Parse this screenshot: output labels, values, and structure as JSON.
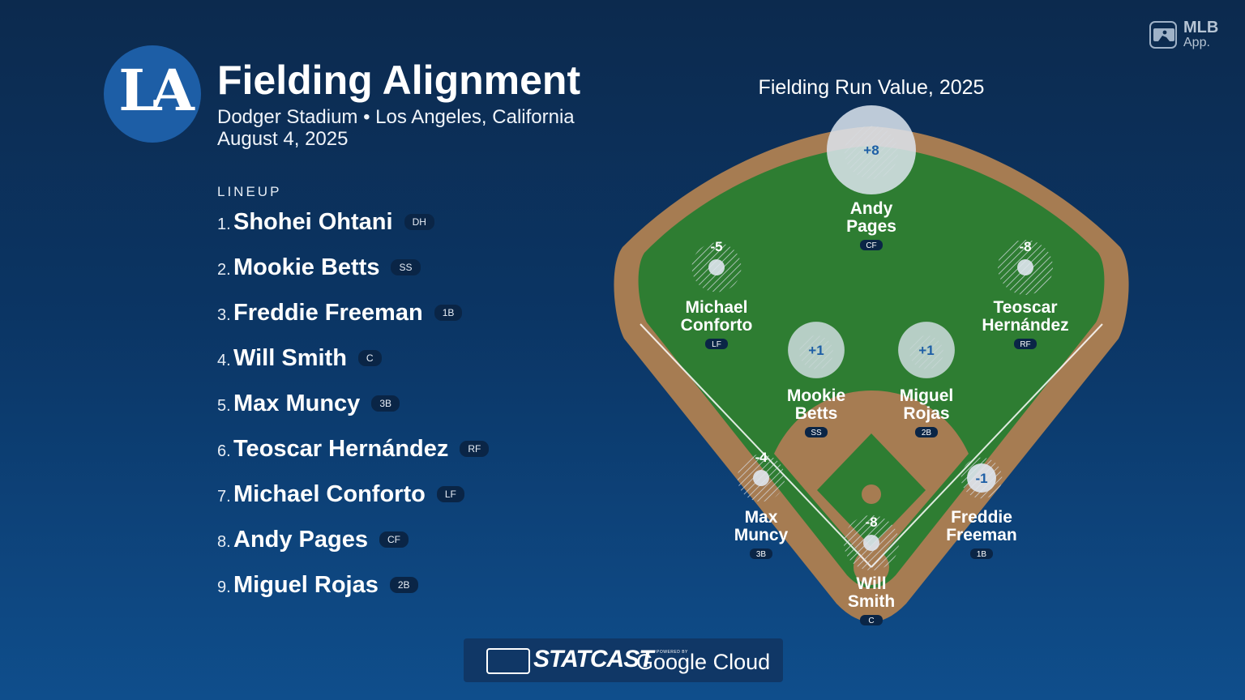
{
  "app_badge": {
    "line1": "MLB",
    "line2": "App."
  },
  "team_logo": {
    "text": "LA",
    "color": "#1d5ea6"
  },
  "header": {
    "title": "Fielding Alignment",
    "venue": "Dodger Stadium • Los Angeles, California",
    "date": "August 4, 2025"
  },
  "lineup": {
    "heading": "LINEUP",
    "players": [
      {
        "num": "1.",
        "name": "Shohei Ohtani",
        "pos": "DH"
      },
      {
        "num": "2.",
        "name": "Mookie Betts",
        "pos": "SS"
      },
      {
        "num": "3.",
        "name": "Freddie Freeman",
        "pos": "1B"
      },
      {
        "num": "4.",
        "name": "Will Smith",
        "pos": "C"
      },
      {
        "num": "5.",
        "name": "Max Muncy",
        "pos": "3B"
      },
      {
        "num": "6.",
        "name": "Teoscar Hernández",
        "pos": "RF"
      },
      {
        "num": "7.",
        "name": "Michael Conforto",
        "pos": "LF"
      },
      {
        "num": "8.",
        "name": "Andy Pages",
        "pos": "CF"
      },
      {
        "num": "9.",
        "name": "Miguel Rojas",
        "pos": "2B"
      }
    ]
  },
  "field": {
    "title": "Fielding Run Value, 2025",
    "colors": {
      "grass": "#2e7d32",
      "dirt": "#a67c52",
      "positive": "#d9e2ec",
      "negative": "#c8d0d8"
    },
    "fielders": [
      {
        "id": "cf",
        "first": "Andy",
        "last": "Pages",
        "pos": "CF",
        "frv": 8,
        "label": "+8"
      },
      {
        "id": "lf",
        "first": "Michael",
        "last": "Conforto",
        "pos": "LF",
        "frv": -5,
        "label": "-5"
      },
      {
        "id": "rf",
        "first": "Teoscar",
        "last": "Hernández",
        "pos": "RF",
        "frv": -8,
        "label": "-8"
      },
      {
        "id": "ss",
        "first": "Mookie",
        "last": "Betts",
        "pos": "SS",
        "frv": 1,
        "label": "+1"
      },
      {
        "id": "2b",
        "first": "Miguel",
        "last": "Rojas",
        "pos": "2B",
        "frv": 1,
        "label": "+1"
      },
      {
        "id": "3b",
        "first": "Max",
        "last": "Muncy",
        "pos": "3B",
        "frv": -4,
        "label": "-4"
      },
      {
        "id": "1b",
        "first": "Freddie",
        "last": "Freeman",
        "pos": "1B",
        "frv": -1,
        "label": "-1"
      },
      {
        "id": "c",
        "first": "Will",
        "last": "Smith",
        "pos": "C",
        "frv": -8,
        "label": "-8"
      }
    ]
  },
  "footer": {
    "brand": "STATCAST",
    "powered_by": "POWERED BY",
    "partner": "Google Cloud"
  }
}
